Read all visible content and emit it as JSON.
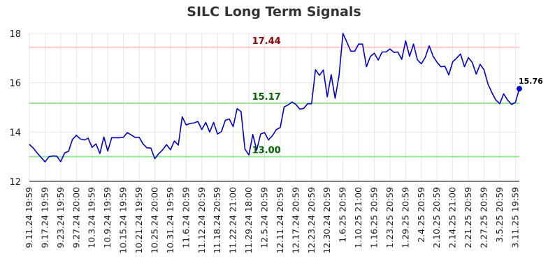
{
  "chart_data": {
    "type": "line",
    "title": "SILC Long Term Signals",
    "xlabel": "",
    "ylabel": "",
    "ylim": [
      12,
      18
    ],
    "yticks": [
      12,
      14,
      16,
      18
    ],
    "grid": true,
    "colors": {
      "line": "#0000cc",
      "resistance": "#ffc8c8",
      "support": "#99e699",
      "resistance_text": "#8b0000",
      "support_text": "#006400"
    },
    "x_tick_labels": [
      "9.11.24 19:59",
      "9.17.24 19:59",
      "9.23.24 19:59",
      "9.27.24 20:00",
      "10.3.24 19:59",
      "10.9.24 19:59",
      "10.15.24 19:59",
      "10.21.24 19:59",
      "10.25.24 20:00",
      "10.31.24 19:59",
      "11.6.24 20:59",
      "11.12.24 20:59",
      "11.18.24 20:59",
      "11.22.24 21:00",
      "11.29.24 18:00",
      "12.5.24 20:59",
      "12.11.24 20:59",
      "12.17.24 20:59",
      "12.23.24 20:59",
      "12.30.24 20:59",
      "1.6.25 20:59",
      "1.10.25 21:00",
      "1.16.25 20:59",
      "1.23.25 20:59",
      "1.29.25 20:59",
      "2.4.25 20:59",
      "2.10.25 20:59",
      "2.14.25 21:00",
      "2.21.25 20:59",
      "2.27.25 20:59",
      "3.5.25 20:59",
      "3.11.25 19:59"
    ],
    "x_tick_positions": [
      0,
      4,
      8,
      12,
      16,
      20,
      24,
      28,
      32,
      36,
      40,
      44,
      48,
      52,
      56,
      60,
      64,
      68,
      72,
      76,
      80,
      84,
      88,
      92,
      96,
      100,
      104,
      108,
      112,
      116,
      120,
      124
    ],
    "series": [
      {
        "values": [
          13.5,
          13.35,
          13.15,
          12.97,
          12.79,
          13.0,
          13.03,
          13.02,
          12.8,
          13.15,
          13.22,
          13.7,
          13.87,
          13.72,
          13.68,
          13.75,
          13.38,
          13.52,
          13.13,
          13.8,
          13.23,
          13.77,
          13.77,
          13.77,
          13.79,
          13.98,
          13.88,
          13.78,
          13.79,
          13.52,
          13.36,
          13.35,
          12.92,
          13.12,
          13.28,
          13.49,
          13.28,
          13.64,
          13.47,
          14.62,
          14.29,
          14.35,
          14.37,
          14.43,
          14.1,
          14.39,
          14.0,
          14.39,
          13.92,
          14.02,
          14.48,
          14.53,
          14.22,
          14.95,
          14.83,
          13.31,
          13.07,
          13.9,
          13.27,
          13.92,
          13.98,
          13.68,
          13.85,
          14.1,
          14.18,
          15.02,
          15.1,
          15.22,
          15.12,
          14.93,
          14.96,
          15.15,
          15.15,
          16.53,
          16.3,
          16.52,
          15.43,
          16.33,
          15.37,
          16.28,
          18.0,
          17.65,
          17.28,
          17.28,
          17.57,
          17.57,
          16.65,
          17.07,
          17.2,
          16.92,
          17.25,
          17.25,
          17.37,
          17.23,
          17.25,
          16.95,
          17.7,
          17.07,
          17.57,
          16.93,
          16.77,
          17.03,
          17.5,
          17.08,
          16.83,
          16.65,
          16.67,
          16.32,
          16.85,
          17.0,
          17.17,
          16.65,
          17.02,
          16.82,
          16.35,
          16.75,
          16.52,
          15.95,
          15.6,
          15.3,
          15.15,
          15.55,
          15.3,
          15.12,
          15.2,
          15.76
        ]
      }
    ],
    "reference_lines": [
      {
        "value": 17.44,
        "label": "17.44",
        "kind": "resistance"
      },
      {
        "value": 15.17,
        "label": "15.17",
        "kind": "support"
      },
      {
        "value": 13.0,
        "label": "13.00",
        "kind": "support"
      }
    ],
    "last_value_label": "15.76"
  }
}
